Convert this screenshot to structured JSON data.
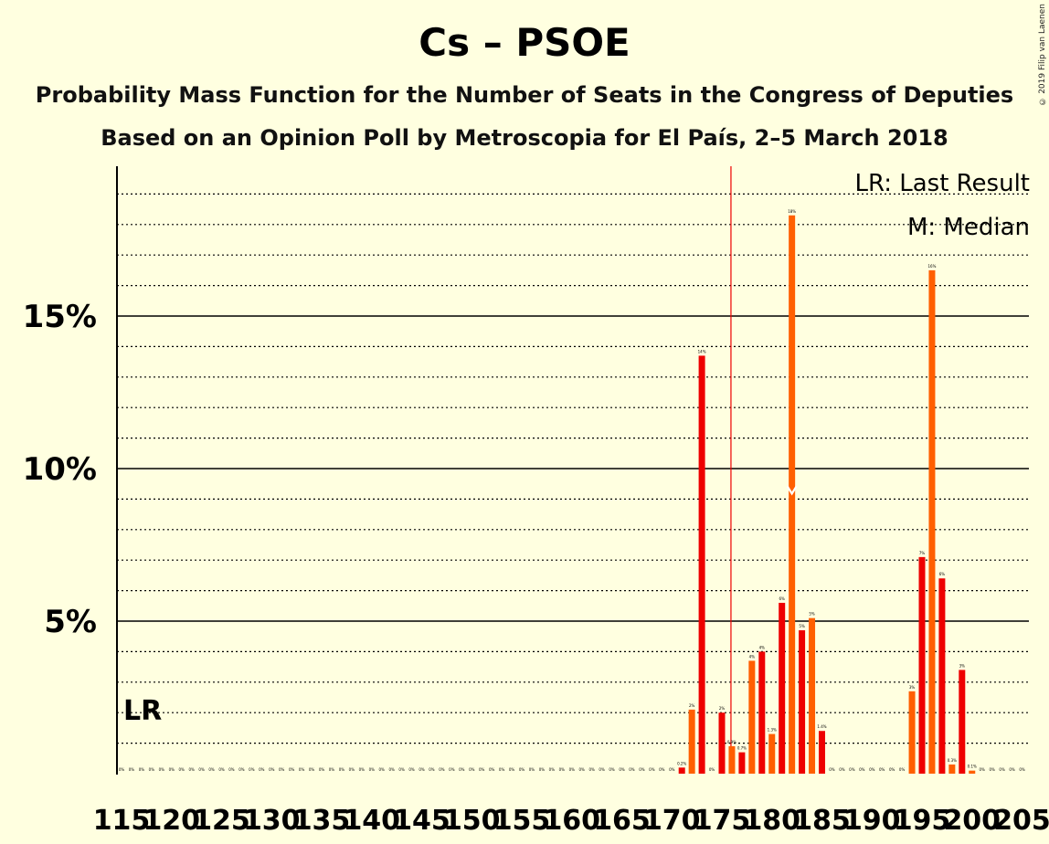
{
  "title": "Cs – PSOE",
  "subtitle_1": "Probability Mass Function for the Number of Seats in the Congress of Deputies",
  "subtitle_2": "Based on an Opinion Poll by Metroscopia for El País, 2–5 March 2018",
  "copyright": "© 2019 Filip van Laenen",
  "colors": {
    "background": "#ffffe0",
    "bar_even": "#ff5f00",
    "bar_odd": "#ee0000",
    "last_result_line": "#ee0000",
    "axis": "#000000"
  },
  "chart_data": {
    "type": "bar",
    "xlabel": "",
    "ylabel": "",
    "x_tick_labels": [
      "115",
      "120",
      "125",
      "130",
      "135",
      "140",
      "145",
      "150",
      "155",
      "160",
      "165",
      "170",
      "175",
      "180",
      "185",
      "190",
      "195",
      "200",
      "205"
    ],
    "y_tick_labels": [
      "5%",
      "10%",
      "15%"
    ],
    "ylim": [
      0,
      20
    ],
    "grid": "solid lines at 5% steps, dotted lines at 1% steps",
    "legend": {
      "position": "top-right",
      "items": [
        "LR: Last Result",
        "M: Median"
      ]
    },
    "last_result": {
      "seats": 176,
      "label": "LR"
    },
    "median": {
      "seats": 182,
      "label": "M"
    },
    "x": [
      115,
      116,
      117,
      118,
      119,
      120,
      121,
      122,
      123,
      124,
      125,
      126,
      127,
      128,
      129,
      130,
      131,
      132,
      133,
      134,
      135,
      136,
      137,
      138,
      139,
      140,
      141,
      142,
      143,
      144,
      145,
      146,
      147,
      148,
      149,
      150,
      151,
      152,
      153,
      154,
      155,
      156,
      157,
      158,
      159,
      160,
      161,
      162,
      163,
      164,
      165,
      166,
      167,
      168,
      169,
      170,
      171,
      172,
      173,
      174,
      175,
      176,
      177,
      178,
      179,
      180,
      181,
      182,
      183,
      184,
      185,
      186,
      187,
      188,
      189,
      190,
      191,
      192,
      193,
      194,
      195,
      196,
      197,
      198,
      199,
      200,
      201,
      202,
      203,
      204,
      205
    ],
    "values": [
      0,
      0,
      0,
      0,
      0,
      0,
      0,
      0,
      0,
      0,
      0,
      0,
      0,
      0,
      0,
      0,
      0,
      0,
      0,
      0,
      0,
      0,
      0,
      0,
      0,
      0,
      0,
      0,
      0,
      0,
      0,
      0,
      0,
      0,
      0,
      0,
      0,
      0,
      0,
      0,
      0,
      0,
      0,
      0,
      0,
      0,
      0,
      0,
      0,
      0,
      0,
      0,
      0,
      0,
      0,
      0,
      0.2,
      2.1,
      13.7,
      0,
      2.0,
      0.9,
      0.7,
      3.7,
      4.0,
      1.3,
      5.6,
      18.3,
      4.7,
      5.1,
      1.4,
      0,
      0,
      0,
      0,
      0,
      0,
      0,
      0,
      2.7,
      7.1,
      16.5,
      6.4,
      0.3,
      3.4,
      0.1,
      0,
      0,
      0,
      0,
      0
    ],
    "data_labels": [
      "0%",
      "0%",
      "0%",
      "0%",
      "0%",
      "0%",
      "0%",
      "0%",
      "0%",
      "0%",
      "0%",
      "0%",
      "0%",
      "0%",
      "0%",
      "0%",
      "0%",
      "0%",
      "0%",
      "0%",
      "0%",
      "0%",
      "0%",
      "0%",
      "0%",
      "0%",
      "0%",
      "0%",
      "0%",
      "0%",
      "0%",
      "0%",
      "0%",
      "0%",
      "0%",
      "0%",
      "0%",
      "0%",
      "0%",
      "0%",
      "0%",
      "0%",
      "0%",
      "0%",
      "0%",
      "0%",
      "0%",
      "0%",
      "0%",
      "0%",
      "0%",
      "0%",
      "0%",
      "0%",
      "0%",
      "0%",
      "0.2%",
      "2%",
      "14%",
      "0%",
      "2%",
      "0.9%",
      "0.7%",
      "4%",
      "4%",
      "1.3%",
      "6%",
      "18%",
      "5%",
      "5%",
      "1.4%",
      "0%",
      "0%",
      "0%",
      "0%",
      "0%",
      "0%",
      "0%",
      "0%",
      "3%",
      "7%",
      "16%",
      "6%",
      "0.3%",
      "3%",
      "0.1%",
      "0%",
      "0%",
      "0%",
      "0%",
      "0%"
    ]
  }
}
